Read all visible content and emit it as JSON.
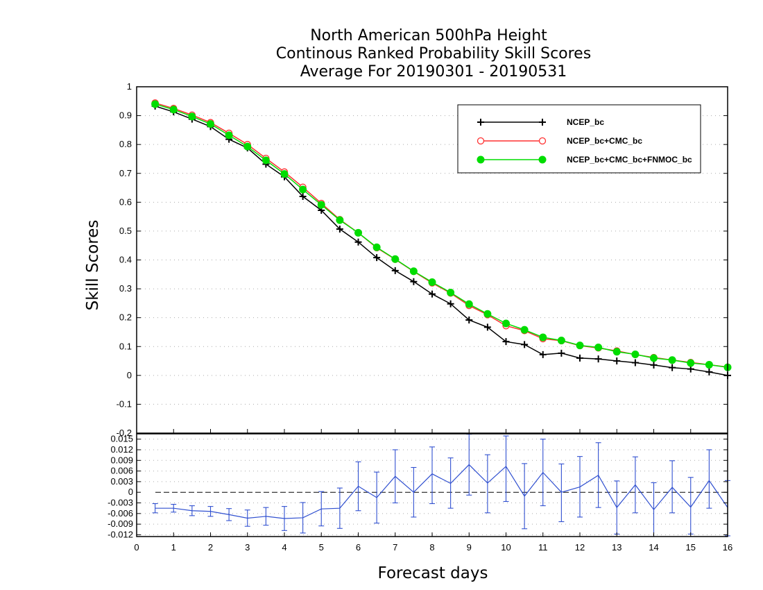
{
  "chart_data": [
    {
      "type": "line",
      "title_lines": [
        "North American 500hPa Height",
        "Continous Ranked Probability Skill Scores",
        "Average For 20190301 - 20190531"
      ],
      "ylabel": "Skill Scores",
      "xlabel": "Forecast days",
      "xlim": [
        0,
        16
      ],
      "ylim": [
        -0.2,
        1
      ],
      "xticks": [
        "0",
        "1",
        "2",
        "3",
        "4",
        "5",
        "6",
        "7",
        "8",
        "9",
        "10",
        "11",
        "12",
        "13",
        "14",
        "15",
        "16"
      ],
      "yticks": [
        "1",
        "0.9",
        "0.8",
        "0.7",
        "0.6",
        "0.5",
        "0.4",
        "0.3",
        "0.2",
        "0.1",
        "0",
        "-0.1",
        "-0.2"
      ],
      "grid": true,
      "legend_position": "top-right",
      "x": [
        0.5,
        1,
        1.5,
        2,
        2.5,
        3,
        3.5,
        4,
        4.5,
        5,
        5.5,
        6,
        6.5,
        7,
        7.5,
        8,
        8.5,
        9,
        9.5,
        10,
        10.5,
        11,
        11.5,
        12,
        12.5,
        13,
        13.5,
        14,
        14.5,
        15,
        15.5,
        16
      ],
      "series": [
        {
          "name": "NCEP_bc",
          "color": "#000000",
          "marker": "plus",
          "values": [
            0.933,
            0.913,
            0.888,
            0.862,
            0.818,
            0.788,
            0.732,
            0.688,
            0.62,
            0.572,
            0.507,
            0.462,
            0.408,
            0.363,
            0.325,
            0.282,
            0.248,
            0.192,
            0.167,
            0.117,
            0.107,
            0.072,
            0.077,
            0.06,
            0.057,
            0.05,
            0.044,
            0.036,
            0.027,
            0.022,
            0.012,
            0.0
          ]
        },
        {
          "name": "NCEP_bc+CMC_bc",
          "color": "#ff3030",
          "marker": "circle-open",
          "values": [
            0.944,
            0.925,
            0.902,
            0.876,
            0.839,
            0.8,
            0.752,
            0.705,
            0.652,
            0.596,
            0.54,
            0.494,
            0.442,
            0.402,
            0.36,
            0.32,
            0.285,
            0.242,
            0.21,
            0.172,
            0.155,
            0.127,
            0.12,
            0.103,
            0.095,
            0.085,
            0.072,
            0.062,
            0.053,
            0.045,
            0.037,
            0.029
          ]
        },
        {
          "name": "NCEP_bc+CMC_bc+FNMOC_bc",
          "color": "#00dd00",
          "marker": "circle-filled",
          "values": [
            0.94,
            0.921,
            0.897,
            0.871,
            0.832,
            0.793,
            0.745,
            0.698,
            0.644,
            0.591,
            0.538,
            0.494,
            0.444,
            0.403,
            0.361,
            0.323,
            0.287,
            0.247,
            0.213,
            0.18,
            0.158,
            0.132,
            0.121,
            0.104,
            0.097,
            0.082,
            0.073,
            0.06,
            0.053,
            0.043,
            0.037,
            0.028
          ]
        }
      ]
    },
    {
      "type": "line",
      "subtype": "difference-with-error-bars",
      "xlim": [
        0,
        16
      ],
      "ylim": [
        -0.0125,
        0.0165
      ],
      "yticks": [
        "0.015",
        "0.012",
        "0.009",
        "0.006",
        "0.003",
        "0",
        "-0.003",
        "-0.006",
        "-0.009",
        "-0.012"
      ],
      "grid": true,
      "series": [
        {
          "color": "#3050d0",
          "x": [
            0.5,
            1,
            1.5,
            2,
            2.5,
            3,
            3.5,
            4,
            4.5,
            5,
            5.5,
            6,
            6.5,
            7,
            7.5,
            8,
            8.5,
            9,
            9.5,
            10,
            10.5,
            11,
            11.5,
            12,
            12.5,
            13,
            13.5,
            14,
            14.5,
            15,
            15.5,
            16
          ],
          "values": [
            -0.0045,
            -0.0045,
            -0.0052,
            -0.0054,
            -0.0063,
            -0.0073,
            -0.0068,
            -0.0074,
            -0.0072,
            -0.0047,
            -0.0045,
            0.0017,
            -0.0015,
            0.0045,
            0.0,
            0.0052,
            0.0025,
            0.0078,
            0.0026,
            0.0073,
            -0.0011,
            0.0056,
            0.0,
            0.0015,
            0.0048,
            -0.0043,
            0.0021,
            -0.0049,
            0.0014,
            -0.0042,
            0.0033,
            -0.0043
          ],
          "err_low": [
            -0.0058,
            -0.0056,
            -0.0066,
            -0.0068,
            -0.008,
            -0.0096,
            -0.0093,
            -0.0108,
            -0.0115,
            -0.0095,
            -0.0102,
            -0.0052,
            -0.0087,
            -0.003,
            -0.007,
            -0.0032,
            -0.0045,
            -0.0008,
            -0.0058,
            -0.0026,
            -0.0103,
            -0.0038,
            -0.0083,
            -0.007,
            -0.0043,
            -0.0118,
            -0.0058,
            -0.013,
            -0.0058,
            -0.0118,
            -0.0045,
            -0.0123
          ],
          "err_high": [
            -0.0032,
            -0.0034,
            -0.0038,
            -0.004,
            -0.0046,
            -0.005,
            -0.0043,
            -0.004,
            -0.0029,
            0.0002,
            0.0012,
            0.0086,
            0.0057,
            0.012,
            0.007,
            0.0128,
            0.0097,
            0.0164,
            0.0106,
            0.0159,
            0.0081,
            0.015,
            0.008,
            0.0101,
            0.014,
            0.0032,
            0.01,
            0.0027,
            0.0089,
            0.0042,
            0.012,
            0.0033
          ]
        }
      ]
    }
  ]
}
